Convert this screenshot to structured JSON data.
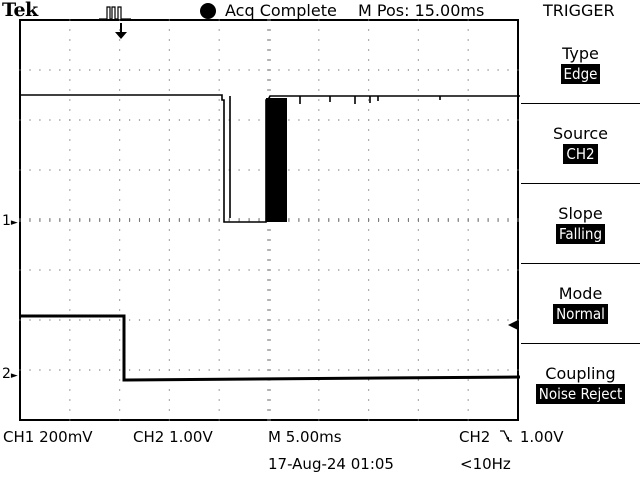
{
  "header": {
    "brand": "Tek",
    "acq_status": "Acq Complete",
    "position": "M Pos: 15.00ms",
    "menu_title": "TRIGGER"
  },
  "menu": [
    {
      "label": "Type",
      "value": "Edge"
    },
    {
      "label": "Source",
      "value": "CH2"
    },
    {
      "label": "Slope",
      "value": "Falling"
    },
    {
      "label": "Mode",
      "value": "Normal"
    },
    {
      "label": "Coupling",
      "value": "Noise Reject"
    }
  ],
  "markers": {
    "ch1": "1",
    "ch2": "2"
  },
  "readouts": {
    "ch1": "CH1  200mV",
    "ch2": "CH2  1.00V",
    "timebase": "M 5.00ms",
    "trigger_src": "CH2",
    "trigger_level": "1.00V",
    "datetime": "17-Aug-24 01:05",
    "freq": "<10Hz"
  },
  "colors": {
    "trace": "#000000",
    "background": "#ffffff",
    "highlight": "#000000"
  }
}
